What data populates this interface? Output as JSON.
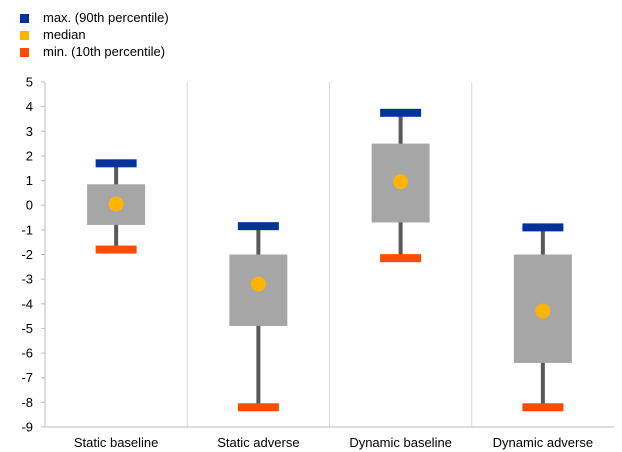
{
  "chart_data": {
    "type": "boxplot",
    "title": "",
    "xlabel": "",
    "ylabel": "",
    "ylim": [
      -9,
      5
    ],
    "yticks": [
      5,
      4,
      3,
      2,
      1,
      0,
      -1,
      -2,
      -3,
      -4,
      -5,
      -6,
      -7,
      -8,
      -9
    ],
    "grid": "vertical category separators",
    "legend_position": "top-left",
    "legend": [
      {
        "label": "max. (90th percentile)",
        "color": "#003399",
        "key": "max"
      },
      {
        "label": "median",
        "color": "#FFB400",
        "key": "median"
      },
      {
        "label": "min. (10th percentile)",
        "color": "#FF4B00",
        "key": "min"
      }
    ],
    "box_color": "#A6A6A6",
    "whisker_color": "#595959",
    "categories": [
      "Static baseline",
      "Static adverse",
      "Dynamic baseline",
      "Dynamic adverse"
    ],
    "series": [
      {
        "category": "Static baseline",
        "max": 1.7,
        "q3": 0.85,
        "median": 0.05,
        "q1": -0.8,
        "min": -1.8
      },
      {
        "category": "Static adverse",
        "max": -0.85,
        "q3": -2.0,
        "median": -3.2,
        "q1": -4.9,
        "min": -8.2
      },
      {
        "category": "Dynamic baseline",
        "max": 3.75,
        "q3": 2.5,
        "median": 0.95,
        "q1": -0.7,
        "min": -2.15
      },
      {
        "category": "Dynamic adverse",
        "max": -0.9,
        "q3": -2.0,
        "median": -4.3,
        "q1": -6.4,
        "min": -8.2
      }
    ]
  }
}
